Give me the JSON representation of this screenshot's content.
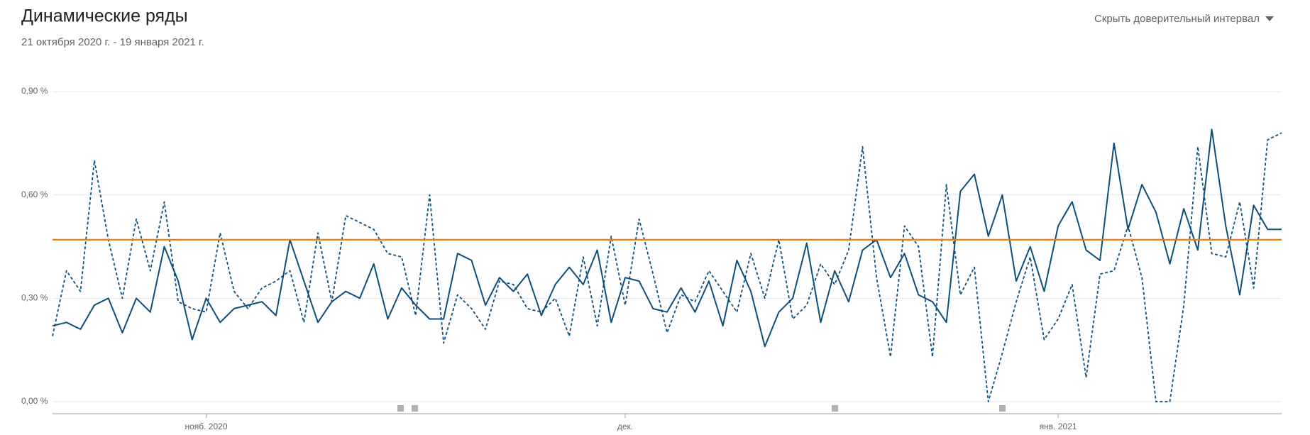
{
  "chart_data": {
    "type": "line",
    "title": "Динамические ряды",
    "subtitle": "21 октября 2020 г. - 19 января 2021 г.",
    "toggle_button": "Скрыть доверительный интервал",
    "categories": [
      null,
      null,
      null,
      null,
      null,
      null,
      null,
      null,
      null,
      null,
      null,
      "нояб. 2020",
      null,
      null,
      null,
      null,
      null,
      null,
      null,
      null,
      null,
      null,
      null,
      null,
      null,
      null,
      null,
      null,
      null,
      null,
      null,
      null,
      null,
      null,
      null,
      null,
      null,
      null,
      null,
      null,
      null,
      "дек.",
      null,
      null,
      null,
      null,
      null,
      null,
      null,
      null,
      null,
      null,
      null,
      null,
      null,
      null,
      null,
      null,
      null,
      null,
      null,
      null,
      null,
      null,
      null,
      null,
      null,
      null,
      null,
      null,
      null,
      null,
      "янв. 2021",
      null,
      null,
      null,
      null,
      null,
      null,
      null,
      null,
      null,
      null,
      null,
      null,
      null,
      null,
      null,
      null
    ],
    "series": [
      {
        "color": "#0b4f7c",
        "dashed": false,
        "values": [
          0.22,
          0.23,
          0.21,
          0.28,
          0.3,
          0.2,
          0.3,
          0.26,
          0.45,
          0.35,
          0.18,
          0.3,
          0.23,
          0.27,
          0.28,
          0.29,
          0.25,
          0.47,
          0.35,
          0.23,
          0.29,
          0.32,
          0.3,
          0.4,
          0.24,
          0.33,
          0.28,
          0.24,
          0.24,
          0.43,
          0.41,
          0.28,
          0.36,
          0.32,
          0.37,
          0.25,
          0.34,
          0.39,
          0.34,
          0.44,
          0.23,
          0.36,
          0.35,
          0.27,
          0.26,
          0.33,
          0.26,
          0.35,
          0.22,
          0.41,
          0.32,
          0.16,
          0.26,
          0.3,
          0.46,
          0.23,
          0.38,
          0.29,
          0.44,
          0.47,
          0.36,
          0.43,
          0.31,
          0.29,
          0.23,
          0.61,
          0.66,
          0.48,
          0.6,
          0.35,
          0.45,
          0.32,
          0.51,
          0.58,
          0.44,
          0.41,
          0.75,
          0.5,
          0.63,
          0.55,
          0.4,
          0.56,
          0.44,
          0.79,
          0.51,
          0.31,
          0.57,
          0.5,
          0.5
        ]
      },
      {
        "color": "#0b4f7c",
        "dashed": true,
        "values": [
          0.19,
          0.38,
          0.32,
          0.7,
          0.47,
          0.3,
          0.53,
          0.38,
          0.58,
          0.29,
          0.27,
          0.26,
          0.49,
          0.32,
          0.27,
          0.33,
          0.35,
          0.38,
          0.23,
          0.49,
          0.29,
          0.54,
          0.52,
          0.5,
          0.43,
          0.42,
          0.25,
          0.6,
          0.17,
          0.31,
          0.27,
          0.21,
          0.35,
          0.34,
          0.27,
          0.26,
          0.3,
          0.19,
          0.42,
          0.22,
          0.48,
          0.28,
          0.53,
          0.37,
          0.2,
          0.31,
          0.29,
          0.38,
          0.32,
          0.26,
          0.43,
          0.3,
          0.47,
          0.24,
          0.28,
          0.4,
          0.34,
          0.44,
          0.74,
          0.36,
          0.13,
          0.51,
          0.45,
          0.13,
          0.63,
          0.31,
          0.39,
          0.0,
          0.14,
          0.29,
          0.42,
          0.18,
          0.24,
          0.34,
          0.07,
          0.37,
          0.38,
          0.51,
          0.36,
          0.0,
          0.0,
          0.28,
          0.74,
          0.43,
          0.42,
          0.58,
          0.33,
          0.76,
          0.78
        ]
      }
    ],
    "reference_line": {
      "value": 0.47,
      "color": "#f57c00"
    },
    "ylim": [
      0,
      0.9
    ],
    "yticks": [
      {
        "value": 0,
        "label": "0,00 %"
      },
      {
        "value": 0.3,
        "label": "0,30 %"
      },
      {
        "value": 0.6,
        "label": "0,60 %"
      },
      {
        "value": 0.9,
        "label": "0,90 %"
      }
    ],
    "grid": true
  }
}
